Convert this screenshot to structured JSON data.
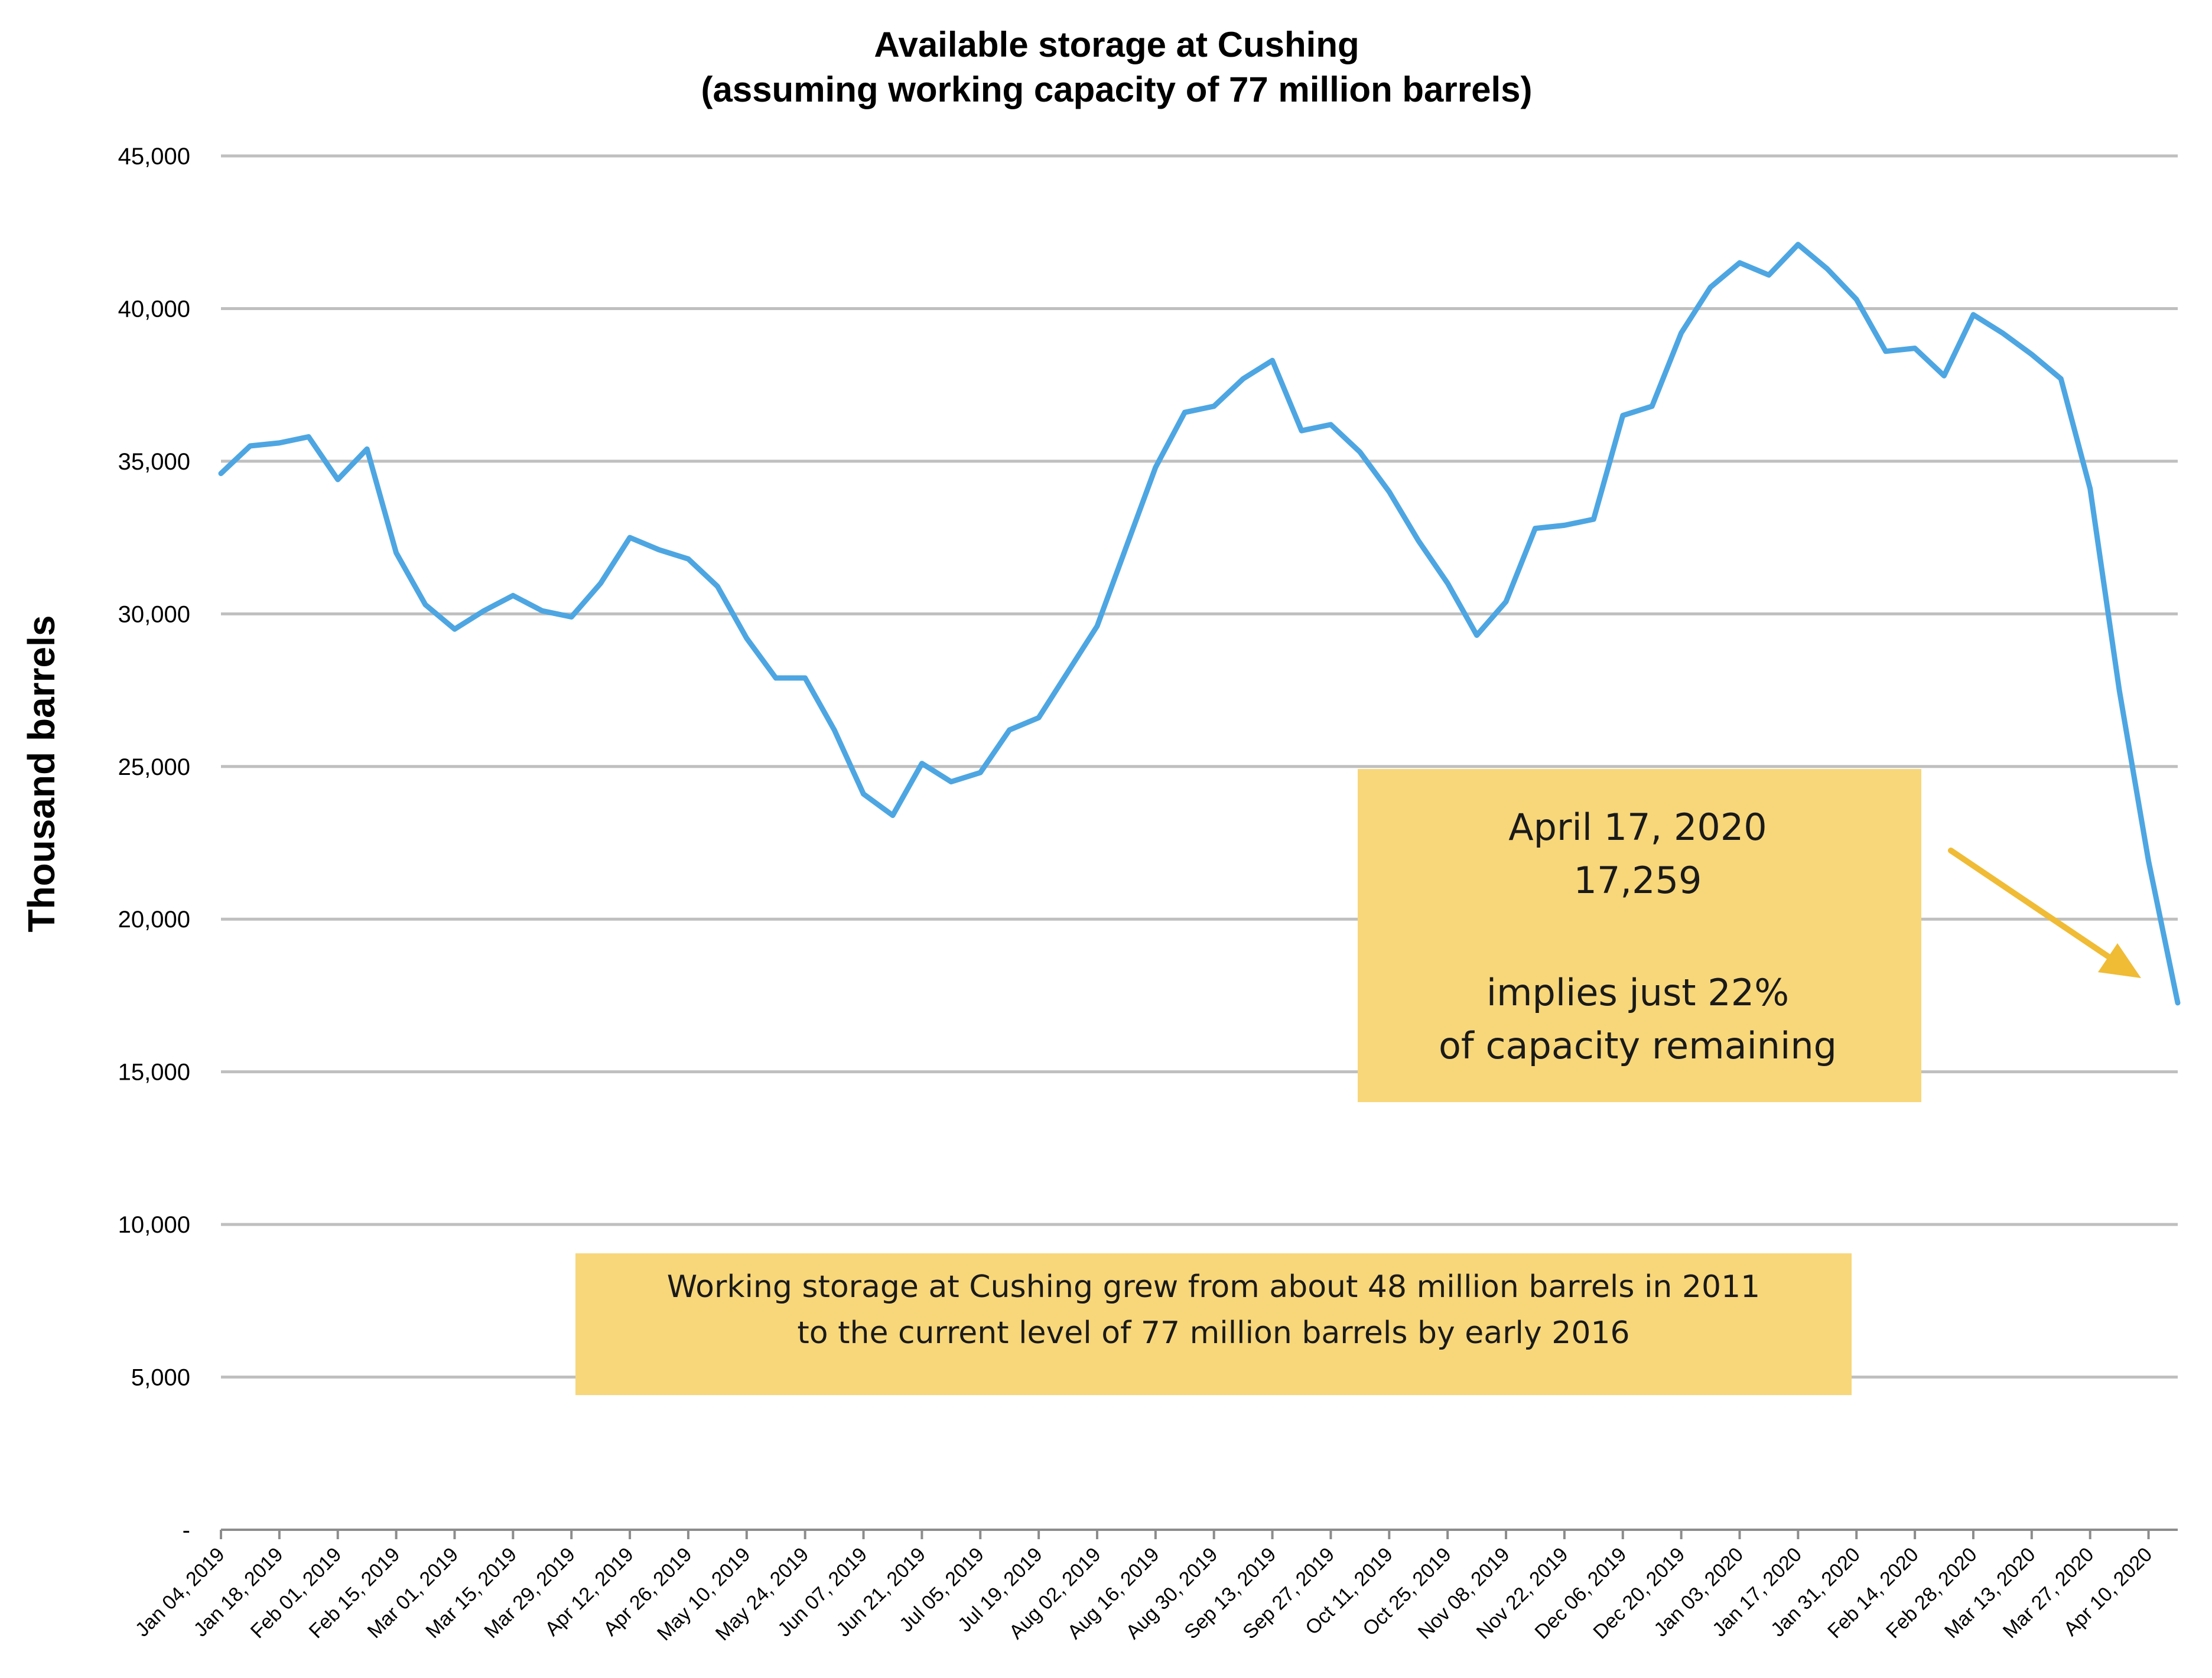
{
  "chart_data": {
    "type": "line",
    "title": "Available storage at Cushing",
    "subtitle": "(assuming working capacity of 77 million barrels)",
    "ylabel": "Thousand barrels",
    "xlabel": "",
    "ylim": [
      0,
      45000
    ],
    "yticks": [
      0,
      5000,
      10000,
      15000,
      20000,
      25000,
      30000,
      35000,
      40000,
      45000
    ],
    "ytick_labels": [
      "-",
      "5,000",
      "10,000",
      "15,000",
      "20,000",
      "25,000",
      "30,000",
      "35,000",
      "40,000",
      "45,000"
    ],
    "grid": true,
    "legend": "none",
    "series_color": "#4da6e2",
    "x_tick_labels": [
      "Jan 04, 2019",
      "Jan 18, 2019",
      "Feb 01, 2019",
      "Feb 15, 2019",
      "Mar 01, 2019",
      "Mar 15, 2019",
      "Mar 29, 2019",
      "Apr 12, 2019",
      "Apr 26, 2019",
      "May 10, 2019",
      "May 24, 2019",
      "Jun 07, 2019",
      "Jun 21, 2019",
      "Jul 05, 2019",
      "Jul 19, 2019",
      "Aug 02, 2019",
      "Aug 16, 2019",
      "Aug 30, 2019",
      "Sep 13, 2019",
      "Sep 27, 2019",
      "Oct 11, 2019",
      "Oct 25, 2019",
      "Nov 08, 2019",
      "Nov 22, 2019",
      "Dec 06, 2019",
      "Dec 20, 2019",
      "Jan 03, 2020",
      "Jan 17, 2020",
      "Jan 31, 2020",
      "Feb 14, 2020",
      "Feb 28, 2020",
      "Mar 13, 2020",
      "Mar 27, 2020",
      "Apr 10, 2020"
    ],
    "series": [
      {
        "values": [
          34600,
          35500,
          35600,
          35800,
          34400,
          35400,
          32000,
          30300,
          29500,
          30100,
          30600,
          30100,
          29900,
          31000,
          32500,
          32100,
          31800,
          30900,
          29200,
          27900,
          27900,
          26200,
          24100,
          23400,
          25100,
          24500,
          24800,
          26200,
          26600,
          28100,
          29600,
          32200,
          34800,
          36600,
          36800,
          37700,
          38300,
          36000,
          36200,
          35300,
          34000,
          32400,
          31000,
          29300,
          30400,
          32800,
          32900,
          33100,
          36500,
          36800,
          39200,
          40700,
          41500,
          41100,
          42100,
          41300,
          40300,
          38600,
          38700,
          37800,
          39800,
          39200,
          38500,
          37700,
          34100,
          27500,
          21900,
          17259
        ]
      }
    ],
    "annotations": [
      {
        "lines": [
          "April 17, 2020",
          "17,259",
          "",
          "implies just 22%",
          "of  capacity remaining"
        ],
        "box_color": "#f8d77a",
        "points_to": "last data point"
      },
      {
        "lines": [
          "Working storage at Cushing grew from about 48 million barrels in 2011",
          "to the current level of 77 million barrels by early 2016"
        ],
        "box_color": "#f8d77a"
      }
    ],
    "arrow_color": "#f0bb35"
  }
}
